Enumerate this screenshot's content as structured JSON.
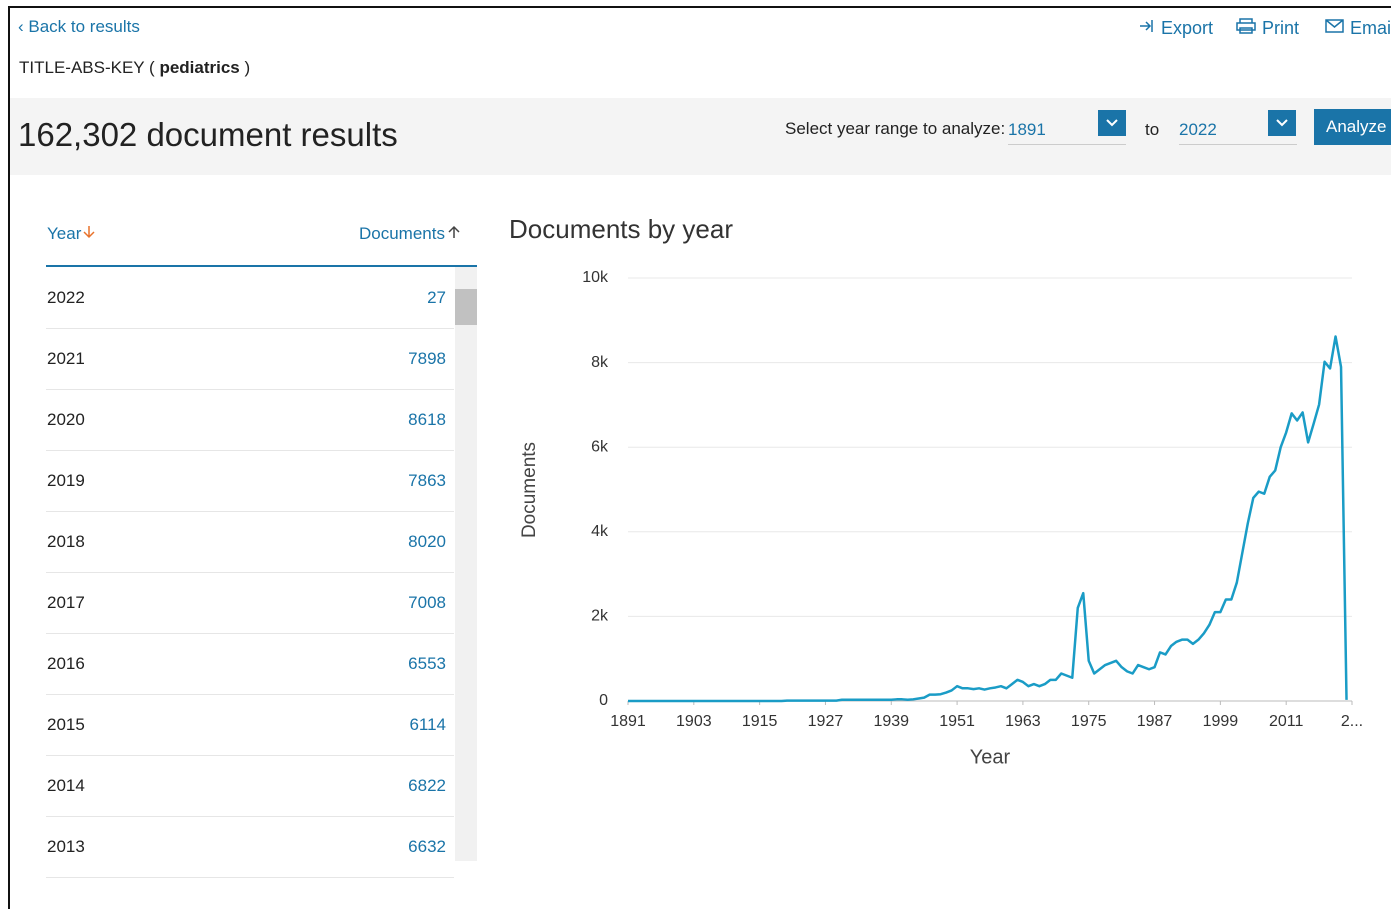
{
  "header": {
    "back": "Back to results",
    "query_prefix": "TITLE-ABS-KEY (",
    "query_term": "pediatrics",
    "query_suffix": ")",
    "actions": [
      "Export",
      "Print",
      "Email"
    ]
  },
  "results": {
    "count_text": "162,302 document results",
    "range_label": "Select year range to analyze:",
    "from": "1891",
    "to_label": "to",
    "to": "2022",
    "analyze": "Analyze"
  },
  "table": {
    "year_header": "Year",
    "docs_header": "Documents"
  },
  "chart_data": {
    "type": "line",
    "title": "Documents by year",
    "x_label": "Year",
    "y_label": "Documents",
    "color": "#1a9cc6",
    "x": [
      1891,
      1892,
      1893,
      1894,
      1895,
      1896,
      1897,
      1898,
      1899,
      1900,
      1901,
      1902,
      1903,
      1904,
      1905,
      1906,
      1907,
      1908,
      1909,
      1910,
      1911,
      1912,
      1913,
      1914,
      1915,
      1916,
      1917,
      1918,
      1919,
      1920,
      1921,
      1922,
      1923,
      1924,
      1925,
      1926,
      1927,
      1928,
      1929,
      1930,
      1931,
      1932,
      1933,
      1934,
      1935,
      1936,
      1937,
      1938,
      1939,
      1940,
      1941,
      1942,
      1943,
      1944,
      1945,
      1946,
      1947,
      1948,
      1949,
      1950,
      1951,
      1952,
      1953,
      1954,
      1955,
      1956,
      1957,
      1958,
      1959,
      1960,
      1961,
      1962,
      1963,
      1964,
      1965,
      1966,
      1967,
      1968,
      1969,
      1970,
      1971,
      1972,
      1973,
      1974,
      1975,
      1976,
      1977,
      1978,
      1979,
      1980,
      1981,
      1982,
      1983,
      1984,
      1985,
      1986,
      1987,
      1988,
      1989,
      1990,
      1991,
      1992,
      1993,
      1994,
      1995,
      1996,
      1997,
      1998,
      1999,
      2000,
      2001,
      2002,
      2003,
      2004,
      2005,
      2006,
      2007,
      2008,
      2009,
      2010,
      2011,
      2012,
      2013,
      2014,
      2015,
      2016,
      2017,
      2018,
      2019,
      2020,
      2021,
      2022
    ],
    "values": [
      0,
      0,
      0,
      0,
      0,
      0,
      0,
      0,
      0,
      0,
      0,
      0,
      0,
      0,
      0,
      0,
      0,
      0,
      0,
      0,
      0,
      0,
      0,
      0,
      0,
      0,
      0,
      0,
      0,
      10,
      10,
      10,
      10,
      10,
      10,
      10,
      10,
      10,
      10,
      30,
      30,
      30,
      30,
      30,
      30,
      30,
      30,
      30,
      30,
      40,
      40,
      30,
      40,
      60,
      80,
      150,
      150,
      160,
      200,
      250,
      350,
      300,
      300,
      280,
      300,
      270,
      300,
      320,
      350,
      300,
      400,
      500,
      450,
      350,
      400,
      350,
      400,
      500,
      500,
      650,
      600,
      550,
      2200,
      2550,
      950,
      650,
      750,
      850,
      900,
      950,
      800,
      700,
      650,
      850,
      800,
      750,
      800,
      1150,
      1100,
      1300,
      1400,
      1450,
      1450,
      1350,
      1450,
      1600,
      1800,
      2100,
      2100,
      2400,
      2400,
      2800,
      3500,
      4200,
      4800,
      4950,
      4900,
      5300,
      5450,
      6000,
      6350,
      6800,
      6632,
      6822,
      6114,
      6553,
      7008,
      8020,
      7863,
      8618,
      7898,
      27
    ],
    "xlim": [
      1891,
      2023
    ],
    "xticks": [
      1891,
      1903,
      1915,
      1927,
      1939,
      1951,
      1963,
      1975,
      1987,
      1999,
      2011,
      {
        "value": 2023,
        "label": "2..."
      }
    ],
    "ylim": [
      0,
      10000
    ],
    "yticks": [
      0,
      {
        "value": 2000,
        "label": "2k"
      },
      {
        "value": 4000,
        "label": "4k"
      },
      {
        "value": 6000,
        "label": "6k"
      },
      {
        "value": 8000,
        "label": "8k"
      },
      {
        "value": 10000,
        "label": "10k"
      }
    ],
    "grid": true
  }
}
